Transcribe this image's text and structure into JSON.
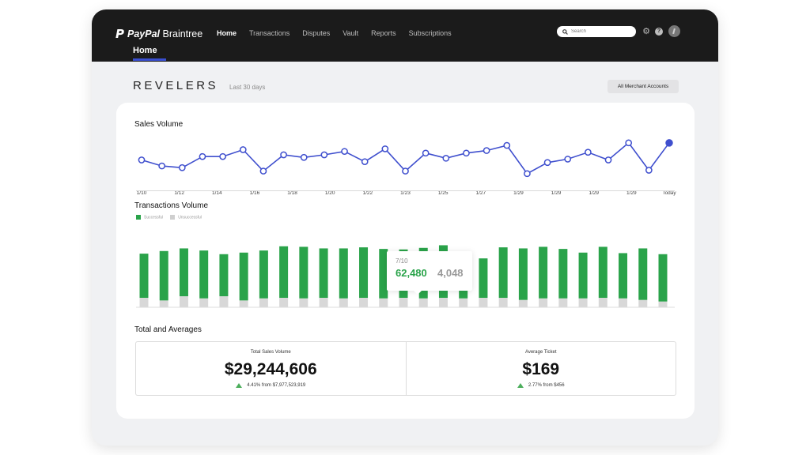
{
  "brand": {
    "logo_mark": "P",
    "name_bold": "PayPal",
    "name_rest": " Braintree"
  },
  "nav": {
    "items": [
      "Home",
      "Transactions",
      "Disputes",
      "Vault",
      "Reports",
      "Subscriptions"
    ],
    "active_index": 0
  },
  "search": {
    "placeholder": "Search",
    "icon": "search-icon"
  },
  "header_icons": [
    "gear-icon",
    "help-icon",
    "avatar"
  ],
  "subtab": {
    "label": "Home"
  },
  "merchant": {
    "name": "REVELERS",
    "period": "Last 30 days",
    "accounts_button": "All Merchant Accounts"
  },
  "sales_volume": {
    "title": "Sales Volume"
  },
  "transactions_volume": {
    "title": "Transactions Volume",
    "legend": [
      "Successful",
      "Unsuccessful"
    ]
  },
  "tooltip": {
    "date": "7/10",
    "successful": "62,480",
    "unsuccessful": "4,048"
  },
  "totals": {
    "title": "Total and  Averages",
    "items": [
      {
        "label": "Total Sales Volume",
        "value": "$29,244,606",
        "change": "4.41% from $7,977,523,919"
      },
      {
        "label": "Average Ticket",
        "value": "$169",
        "change": "2.77% from $456"
      }
    ]
  },
  "colors": {
    "line": "#3f4fce",
    "successful": "#2aa34a",
    "unsuccessful": "#d8d8d8",
    "topbar": "#1b1b1b",
    "accent": "#3a4fd0"
  },
  "chart_data": [
    {
      "type": "line",
      "title": "Sales Volume",
      "x_tick_labels": [
        "1/10",
        "1/12",
        "1/14",
        "1/16",
        "1/18",
        "1/20",
        "1/22",
        "1/23",
        "1/25",
        "1/27",
        "1/29",
        "1/29",
        "1/29",
        "1/29",
        "Today"
      ],
      "values": [
        60,
        53,
        51,
        64,
        64,
        72,
        47,
        66,
        63,
        66,
        70,
        58,
        73,
        47,
        68,
        62,
        68,
        71,
        77,
        44,
        57,
        61,
        69,
        60,
        80,
        48,
        80
      ],
      "ylim": [
        30,
        90
      ],
      "grid": false
    },
    {
      "type": "bar",
      "title": "Transactions Volume",
      "series": [
        {
          "name": "Successful",
          "values": [
            84,
            94,
            91,
            91,
            80,
            91,
            91,
            98,
            98,
            94,
            95,
            96,
            94,
            92,
            96,
            100,
            84,
            75,
            96,
            98,
            98,
            94,
            87,
            97,
            86,
            98,
            90
          ]
        },
        {
          "name": "Unsuccessful",
          "values": [
            18,
            13,
            21,
            17,
            21,
            13,
            17,
            18,
            17,
            18,
            17,
            18,
            17,
            18,
            17,
            18,
            17,
            18,
            18,
            14,
            17,
            17,
            17,
            18,
            17,
            14,
            11
          ]
        }
      ],
      "ylim": [
        0,
        125
      ],
      "stacked": true,
      "legend_position": "top-left"
    }
  ]
}
